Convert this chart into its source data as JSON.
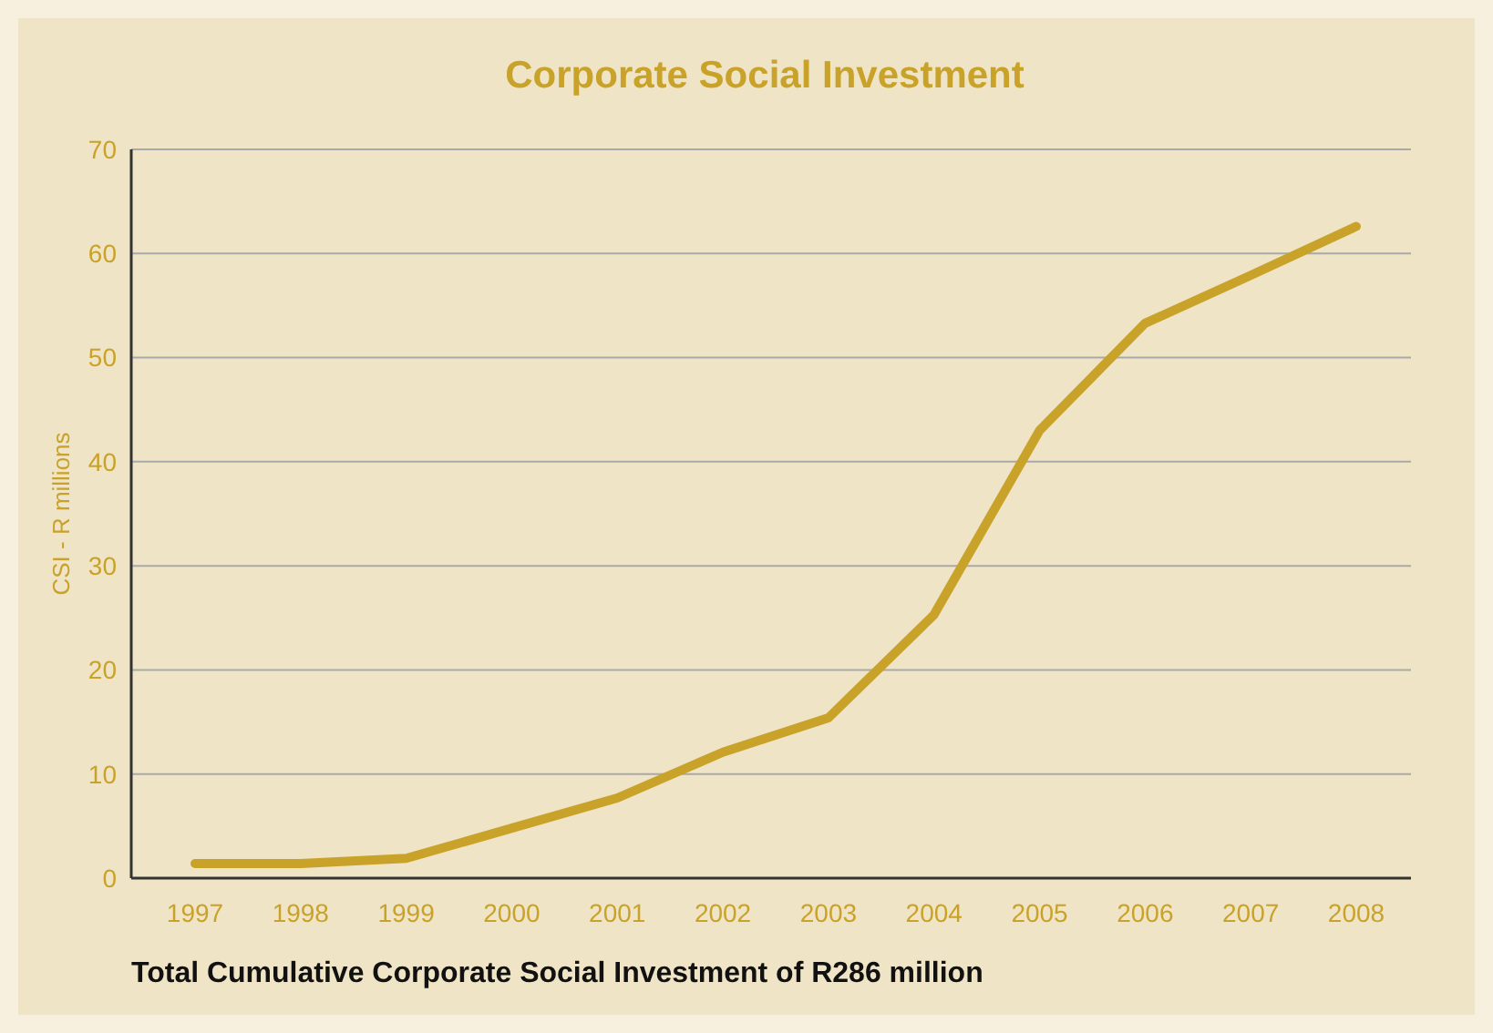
{
  "chart_data": {
    "type": "line",
    "title": "Corporate Social Investment",
    "ylabel": "CSI - R millions",
    "categories": [
      "1997",
      "1998",
      "1999",
      "2000",
      "2001",
      "2002",
      "2003",
      "2004",
      "2005",
      "2006",
      "2007",
      "2008"
    ],
    "series": [
      {
        "color": "#c9a22a",
        "values": [
          1.4,
          1.4,
          1.9,
          4.8,
          7.7,
          12.1,
          15.4,
          25.3,
          43,
          53.3,
          57.9,
          62.6
        ]
      }
    ],
    "ylim": [
      0,
      70
    ],
    "yticks": [
      0,
      10,
      20,
      30,
      40,
      50,
      60,
      70
    ],
    "grid": "y",
    "annotations": [
      "Total Cumulative Corporate Social Investment of R286 million"
    ]
  }
}
